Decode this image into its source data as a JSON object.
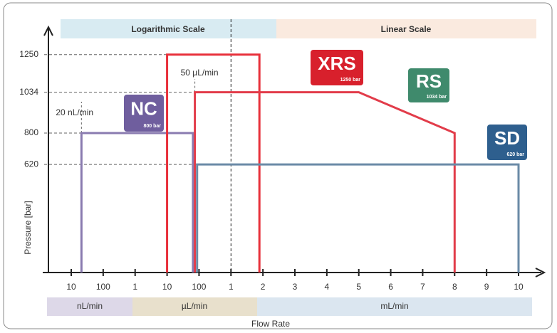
{
  "chart_data": {
    "type": "line",
    "scale_labels": [
      "Logarithmic Scale",
      "Linear Scale"
    ],
    "unit_labels": [
      "nL/min",
      "µL/min",
      "mL/min"
    ],
    "x_label": "Flow Rate",
    "y_label": "Pressure [bar]",
    "xlim": [
      -0.8,
      15
    ],
    "xticks": [
      {
        "value": 0,
        "label": "10"
      },
      {
        "value": 1,
        "label": "100"
      },
      {
        "value": 2,
        "label": "1"
      },
      {
        "value": 3,
        "label": "10"
      },
      {
        "value": 4,
        "label": "100"
      },
      {
        "value": 5,
        "label": "1"
      },
      {
        "value": 6,
        "label": "2"
      },
      {
        "value": 7,
        "label": "3"
      },
      {
        "value": 8,
        "label": "4"
      },
      {
        "value": 9,
        "label": "5"
      },
      {
        "value": 10,
        "label": "6"
      },
      {
        "value": 11,
        "label": "7"
      },
      {
        "value": 12,
        "label": "8"
      },
      {
        "value": 13,
        "label": "9"
      },
      {
        "value": 14,
        "label": "10"
      }
    ],
    "ylim": [
      0,
      1400
    ],
    "yticks": [
      620,
      800,
      1034,
      1250
    ],
    "scale_divider": 5,
    "series": [
      {
        "name": "NC",
        "color": "#8a7bb0",
        "x": [
          0.32,
          0.32,
          3.81,
          3.81
        ],
        "values": [
          0,
          800,
          800,
          0
        ]
      },
      {
        "name": "XRS",
        "color": "#e8303a",
        "x": [
          3,
          3,
          5.89,
          5.89
        ],
        "values": [
          0,
          1250,
          1250,
          0
        ]
      },
      {
        "name": "RS",
        "color": "#e23c4a",
        "x": [
          3.87,
          3.87,
          9,
          12,
          12
        ],
        "values": [
          0,
          1034,
          1034,
          800,
          0
        ]
      },
      {
        "name": "SD",
        "color": "#6a8aa6",
        "x": [
          3.94,
          3.94,
          14,
          14
        ],
        "values": [
          0,
          620,
          620,
          0
        ]
      }
    ],
    "badges": [
      {
        "label": "NC",
        "sub": "800 bar",
        "color": "#6f5e9e"
      },
      {
        "label": "XRS",
        "sub": "1250 bar",
        "color": "#d8202c"
      },
      {
        "label": "RS",
        "sub": "1034 bar",
        "color": "#3f8a6c"
      },
      {
        "label": "SD",
        "sub": "620 bar",
        "color": "#2e5f8e"
      }
    ],
    "annotations": [
      "20 nL/min",
      "50 µL/min"
    ]
  }
}
